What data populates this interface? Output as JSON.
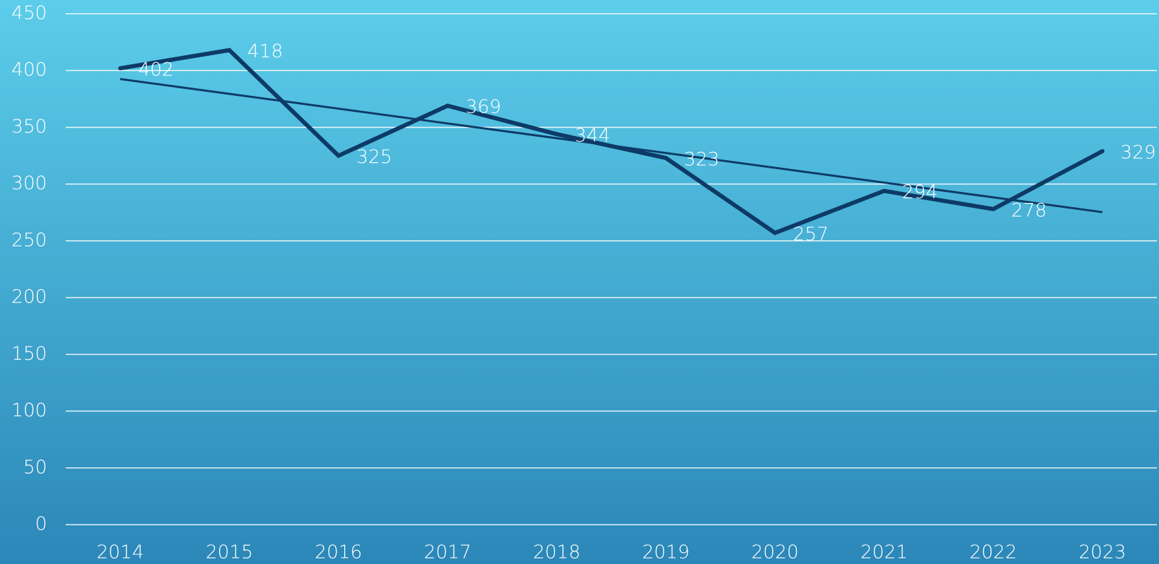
{
  "chart_data": {
    "type": "line",
    "categories": [
      "2014",
      "2015",
      "2016",
      "2017",
      "2018",
      "2019",
      "2020",
      "2021",
      "2022",
      "2023"
    ],
    "values": [
      402,
      418,
      325,
      369,
      344,
      323,
      257,
      294,
      278,
      329
    ],
    "color": "#0d3a66",
    "trendline": "linear",
    "data_labels": true,
    "ylim": [
      0,
      450
    ],
    "yticks": [
      0,
      50,
      100,
      150,
      200,
      250,
      300,
      350,
      400,
      450
    ],
    "grid": true
  }
}
